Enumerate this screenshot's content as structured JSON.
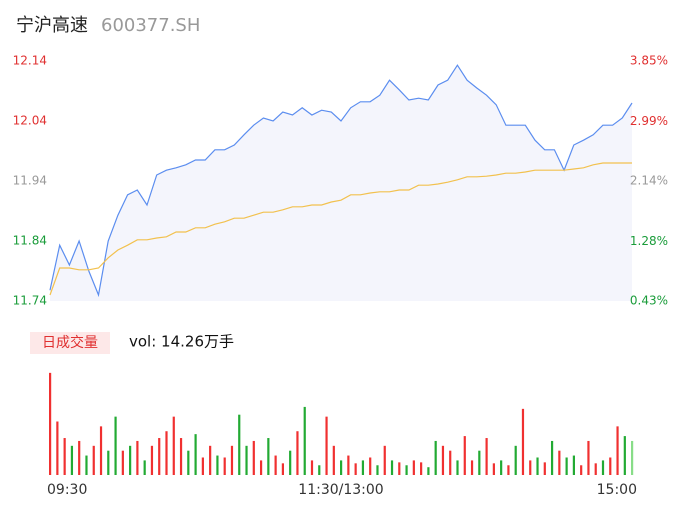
{
  "header": {
    "name": "宁沪高速",
    "code": "600377.SH"
  },
  "chart_data": [
    {
      "type": "line",
      "x": [
        0,
        4,
        8,
        12,
        16,
        20,
        24,
        28,
        32,
        36,
        40,
        44,
        48,
        52,
        56,
        60,
        64,
        68,
        72,
        76,
        80,
        84,
        88,
        92,
        96,
        100,
        104,
        108,
        112,
        116,
        120,
        124,
        128,
        132,
        136,
        140,
        144,
        148,
        152,
        156,
        160,
        164,
        168,
        172,
        176,
        180,
        184,
        188,
        192,
        196,
        200,
        204,
        208,
        212,
        216,
        220,
        224,
        228,
        232,
        236,
        240
      ],
      "series": [
        {
          "color": "#5b8def",
          "fill": "#f4f5fc",
          "values": [
            11.758,
            11.833,
            11.8,
            11.84,
            11.79,
            11.75,
            11.84,
            11.883,
            11.917,
            11.925,
            11.9,
            11.95,
            11.958,
            11.962,
            11.967,
            11.975,
            11.975,
            11.992,
            11.992,
            12.0,
            12.017,
            12.033,
            12.045,
            12.04,
            12.055,
            12.05,
            12.062,
            12.05,
            12.058,
            12.055,
            12.04,
            12.062,
            12.072,
            12.072,
            12.083,
            12.108,
            12.092,
            12.075,
            12.078,
            12.075,
            12.1,
            12.108,
            12.133,
            12.108,
            12.095,
            12.083,
            12.067,
            12.033,
            12.033,
            12.033,
            12.008,
            11.992,
            11.992,
            11.958,
            12.0,
            12.008,
            12.017,
            12.033,
            12.033,
            12.045,
            12.07
          ]
        },
        {
          "color": "#f2c14e",
          "values": [
            11.75,
            11.795,
            11.795,
            11.792,
            11.792,
            11.795,
            11.812,
            11.825,
            11.833,
            11.842,
            11.842,
            11.845,
            11.847,
            11.855,
            11.855,
            11.862,
            11.862,
            11.868,
            11.872,
            11.878,
            11.878,
            11.883,
            11.888,
            11.888,
            11.892,
            11.897,
            11.897,
            11.9,
            11.9,
            11.905,
            11.908,
            11.917,
            11.917,
            11.92,
            11.922,
            11.922,
            11.925,
            11.925,
            11.933,
            11.933,
            11.935,
            11.938,
            11.942,
            11.947,
            11.947,
            11.948,
            11.95,
            11.953,
            11.953,
            11.955,
            11.958,
            11.958,
            11.958,
            11.958,
            11.96,
            11.962,
            11.967,
            11.97,
            11.97,
            11.97,
            11.97
          ]
        }
      ],
      "xlim": [
        0,
        240
      ],
      "ylim": [
        11.74,
        12.14
      ],
      "yticks": [
        11.74,
        11.84,
        11.94,
        12.04,
        12.14
      ],
      "y2lim": [
        0.43,
        3.85
      ],
      "y2ticks": [
        {
          "value": 0.43,
          "label": "0.43%"
        },
        {
          "value": 1.28,
          "label": "1.28%"
        },
        {
          "value": 2.14,
          "label": "2.14%"
        },
        {
          "value": 2.99,
          "label": "2.99%"
        },
        {
          "value": 3.85,
          "label": "3.85%"
        }
      ],
      "tick_colors": [
        "#1a9c3a",
        "#1a9c3a",
        "#999999",
        "#e03030",
        "#e03030"
      ],
      "grid": false
    },
    {
      "type": "bar",
      "title": "日成交量",
      "subtitle": "vol: 14.26万手",
      "x": [
        0,
        3,
        6,
        9,
        12,
        15,
        18,
        21,
        24,
        27,
        30,
        33,
        36,
        39,
        42,
        45,
        48,
        51,
        54,
        57,
        60,
        63,
        66,
        69,
        72,
        75,
        78,
        81,
        84,
        87,
        90,
        93,
        96,
        99,
        102,
        105,
        108,
        111,
        114,
        117,
        120,
        123,
        126,
        129,
        132,
        135,
        138,
        141,
        144,
        147,
        150,
        153,
        156,
        159,
        162,
        165,
        168,
        171,
        174,
        177,
        180,
        183,
        186,
        189,
        192,
        195,
        198,
        201,
        204,
        207,
        210,
        213,
        216,
        219,
        222,
        225,
        228,
        231,
        234,
        237,
        240
      ],
      "values": [
        1050,
        550,
        380,
        300,
        350,
        200,
        300,
        500,
        250,
        600,
        250,
        300,
        350,
        150,
        300,
        380,
        450,
        600,
        380,
        250,
        420,
        180,
        300,
        200,
        180,
        300,
        620,
        300,
        350,
        150,
        380,
        200,
        120,
        250,
        450,
        700,
        150,
        100,
        600,
        300,
        150,
        200,
        120,
        150,
        180,
        100,
        300,
        150,
        130,
        100,
        150,
        130,
        80,
        350,
        300,
        250,
        150,
        400,
        150,
        250,
        380,
        120,
        150,
        100,
        300,
        680,
        150,
        180,
        130,
        350,
        250,
        180,
        200,
        100,
        350,
        120,
        150,
        180,
        500,
        400,
        350
      ],
      "colors": [
        "#f03030",
        "#f03030",
        "#f03030",
        "#22aa33",
        "#f03030",
        "#22aa33",
        "#f03030",
        "#f03030",
        "#22aa33",
        "#22aa33",
        "#f03030",
        "#22aa33",
        "#f03030",
        "#22aa33",
        "#f03030",
        "#f03030",
        "#f03030",
        "#f03030",
        "#f03030",
        "#22aa33",
        "#22aa33",
        "#f03030",
        "#f03030",
        "#22aa33",
        "#f03030",
        "#f03030",
        "#22aa33",
        "#22aa33",
        "#f03030",
        "#f03030",
        "#22aa33",
        "#f03030",
        "#f03030",
        "#22aa33",
        "#f03030",
        "#22aa33",
        "#f03030",
        "#22aa33",
        "#f03030",
        "#f03030",
        "#22aa33",
        "#f03030",
        "#f03030",
        "#22aa33",
        "#f03030",
        "#22aa33",
        "#f03030",
        "#22aa33",
        "#f03030",
        "#22aa33",
        "#f03030",
        "#f03030",
        "#22aa33",
        "#22aa33",
        "#f03030",
        "#f03030",
        "#22aa33",
        "#f03030",
        "#f03030",
        "#22aa33",
        "#f03030",
        "#f03030",
        "#22aa33",
        "#f03030",
        "#22aa33",
        "#f03030",
        "#f03030",
        "#22aa33",
        "#f03030",
        "#22aa33",
        "#f03030",
        "#22aa33",
        "#22aa33",
        "#f03030",
        "#f03030",
        "#f03030",
        "#22aa33",
        "#f03030",
        "#f03030",
        "#22aa33",
        "#88dd88"
      ],
      "xlim": [
        0,
        240
      ],
      "ylim": [
        0,
        1100
      ],
      "xticks": [
        {
          "value": 0,
          "label": "09:30"
        },
        {
          "value": 120,
          "label": "11:30/13:00"
        },
        {
          "value": 240,
          "label": "15:00"
        }
      ]
    }
  ]
}
